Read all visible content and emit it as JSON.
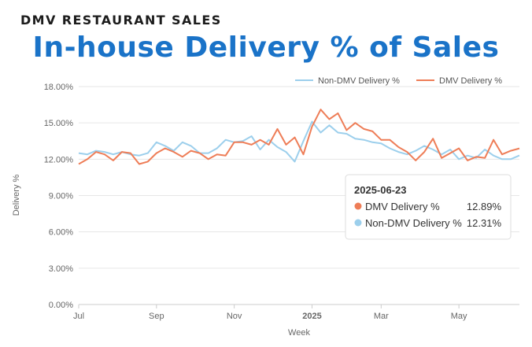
{
  "header": {
    "kicker": "DMV RESTAURANT SALES",
    "title": "In-house Delivery % of Sales"
  },
  "chart_data": {
    "type": "line",
    "xlabel": "Week",
    "ylabel": "Delivery %",
    "x_tick_labels": [
      "Jul",
      "Sep",
      "Nov",
      "2025",
      "Mar",
      "May"
    ],
    "y_tick_labels": [
      "0.00%",
      "3.00%",
      "6.00%",
      "9.00%",
      "12.00%",
      "15.00%",
      "18.00%"
    ],
    "ylim": [
      0,
      18
    ],
    "grid": true,
    "legend_position": "top-right",
    "x": [
      "2024-07-01",
      "2024-07-08",
      "2024-07-15",
      "2024-07-22",
      "2024-07-29",
      "2024-08-05",
      "2024-08-12",
      "2024-08-19",
      "2024-08-26",
      "2024-09-02",
      "2024-09-09",
      "2024-09-16",
      "2024-09-23",
      "2024-09-30",
      "2024-10-07",
      "2024-10-14",
      "2024-10-21",
      "2024-10-28",
      "2024-11-04",
      "2024-11-11",
      "2024-11-18",
      "2024-11-25",
      "2024-12-02",
      "2024-12-09",
      "2024-12-16",
      "2024-12-23",
      "2024-12-30",
      "2025-01-06",
      "2025-01-13",
      "2025-01-20",
      "2025-01-27",
      "2025-02-03",
      "2025-02-10",
      "2025-02-17",
      "2025-02-24",
      "2025-03-03",
      "2025-03-10",
      "2025-03-17",
      "2025-03-24",
      "2025-03-31",
      "2025-04-07",
      "2025-04-14",
      "2025-04-21",
      "2025-04-28",
      "2025-05-05",
      "2025-05-12",
      "2025-05-19",
      "2025-05-26",
      "2025-06-02",
      "2025-06-09",
      "2025-06-16",
      "2025-06-23"
    ],
    "series": [
      {
        "name": "Non-DMV Delivery %",
        "color": "#9ccfec",
        "values": [
          12.5,
          12.4,
          12.7,
          12.6,
          12.4,
          12.6,
          12.4,
          12.3,
          12.5,
          13.4,
          13.1,
          12.7,
          13.4,
          13.1,
          12.5,
          12.5,
          12.9,
          13.6,
          13.4,
          13.5,
          13.9,
          12.8,
          13.6,
          13.0,
          12.6,
          11.8,
          13.5,
          15.1,
          14.2,
          14.8,
          14.2,
          14.1,
          13.7,
          13.6,
          13.4,
          13.3,
          12.9,
          12.6,
          12.4,
          12.7,
          13.1,
          12.8,
          12.4,
          12.8,
          12.0,
          12.3,
          12.1,
          12.8,
          12.3,
          12.0,
          12.0,
          12.31
        ]
      },
      {
        "name": "DMV Delivery %",
        "color": "#ee7d57",
        "values": [
          11.6,
          12.0,
          12.6,
          12.4,
          11.9,
          12.6,
          12.5,
          11.6,
          11.8,
          12.5,
          12.9,
          12.6,
          12.2,
          12.7,
          12.5,
          12.0,
          12.4,
          12.3,
          13.4,
          13.4,
          13.2,
          13.6,
          13.2,
          14.5,
          13.2,
          13.8,
          12.4,
          14.7,
          16.1,
          15.3,
          15.8,
          14.4,
          15.0,
          14.5,
          14.3,
          13.6,
          13.6,
          13.0,
          12.6,
          11.9,
          12.6,
          13.7,
          12.1,
          12.5,
          12.9,
          11.9,
          12.2,
          12.1,
          13.6,
          12.4,
          12.7,
          12.89
        ]
      }
    ],
    "tooltip": {
      "date": "2025-06-23",
      "rows": [
        {
          "series": "DMV Delivery %",
          "value": "12.89%",
          "color": "#ee7d57"
        },
        {
          "series": "Non-DMV Delivery %",
          "value": "12.31%",
          "color": "#9ccfec"
        }
      ]
    }
  }
}
